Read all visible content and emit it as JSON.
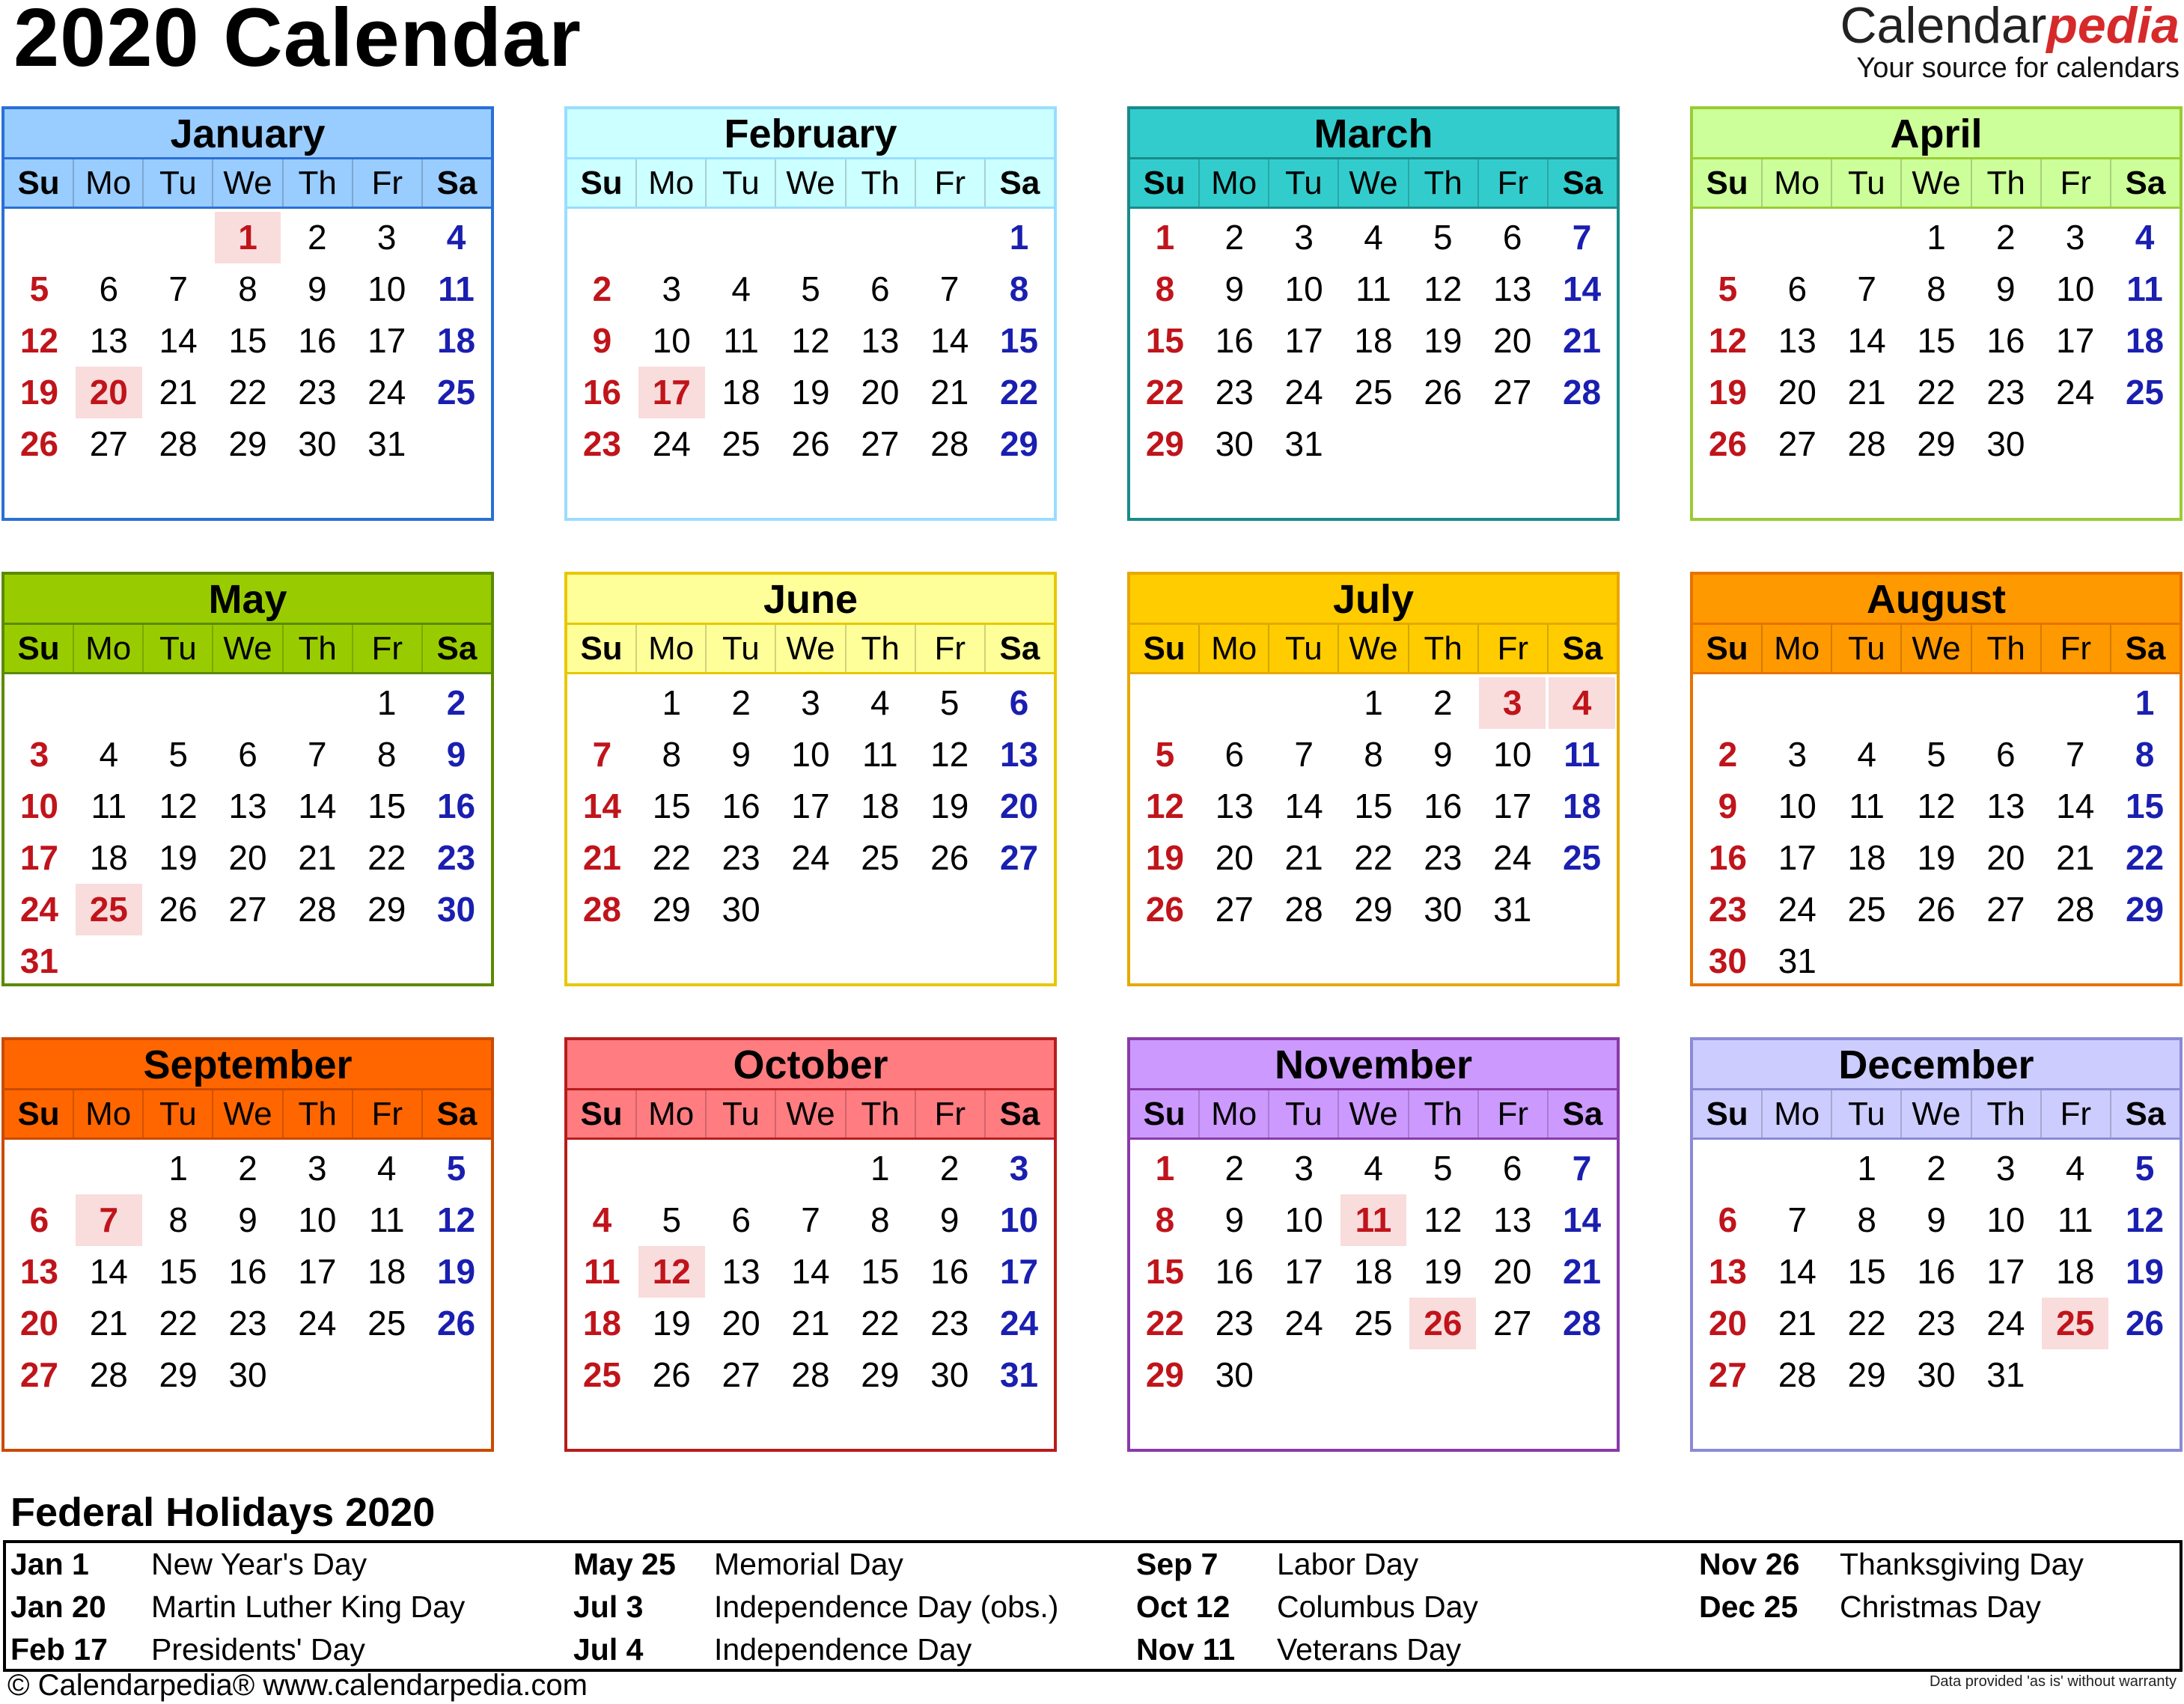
{
  "title": "2020 Calendar",
  "brand": {
    "name_part1": "Calendar",
    "name_part2": "pedia",
    "tagline": "Your source for calendars"
  },
  "weekdays": [
    "Su",
    "Mo",
    "Tu",
    "We",
    "Th",
    "Fr",
    "Sa"
  ],
  "months": [
    {
      "name": "January",
      "offset": 3,
      "days": 31,
      "holidays": [
        1,
        20
      ],
      "border": "#2a6fd6",
      "head": "#99ccff",
      "dow": "#99ccff"
    },
    {
      "name": "February",
      "offset": 6,
      "days": 29,
      "holidays": [
        17
      ],
      "border": "#99ddff",
      "head": "#ccffff",
      "dow": "#ccffff"
    },
    {
      "name": "March",
      "offset": 0,
      "days": 31,
      "holidays": [],
      "border": "#1a8a8a",
      "head": "#33cccc",
      "dow": "#33cccc"
    },
    {
      "name": "April",
      "offset": 3,
      "days": 30,
      "holidays": [],
      "border": "#99cc33",
      "head": "#ccff99",
      "dow": "#ccff99"
    },
    {
      "name": "May",
      "offset": 5,
      "days": 31,
      "holidays": [
        25
      ],
      "border": "#5a8a00",
      "head": "#99cc00",
      "dow": "#99cc00"
    },
    {
      "name": "June",
      "offset": 1,
      "days": 30,
      "holidays": [],
      "border": "#e6c800",
      "head": "#ffff99",
      "dow": "#ffff99"
    },
    {
      "name": "July",
      "offset": 3,
      "days": 31,
      "holidays": [
        3,
        4
      ],
      "border": "#e6a800",
      "head": "#ffcc00",
      "dow": "#ffcc00"
    },
    {
      "name": "August",
      "offset": 6,
      "days": 31,
      "holidays": [],
      "border": "#e67300",
      "head": "#ff9900",
      "dow": "#ff9900"
    },
    {
      "name": "September",
      "offset": 2,
      "days": 30,
      "holidays": [
        7
      ],
      "border": "#cc4a00",
      "head": "#ff6600",
      "dow": "#ff6600"
    },
    {
      "name": "October",
      "offset": 4,
      "days": 31,
      "holidays": [
        12
      ],
      "border": "#b81c1c",
      "head": "#ff7c80",
      "dow": "#ff7c80"
    },
    {
      "name": "November",
      "offset": 0,
      "days": 30,
      "holidays": [
        11,
        26
      ],
      "border": "#8a3aa8",
      "head": "#cc99ff",
      "dow": "#cc99ff"
    },
    {
      "name": "December",
      "offset": 2,
      "days": 31,
      "holidays": [
        25
      ],
      "border": "#8a8ad6",
      "head": "#ccccff",
      "dow": "#ccccff"
    }
  ],
  "federal_holidays": {
    "title": "Federal Holidays 2020",
    "items": [
      {
        "date": "Jan 1",
        "name": "New Year's Day"
      },
      {
        "date": "Jan 20",
        "name": "Martin Luther King Day"
      },
      {
        "date": "Feb 17",
        "name": "Presidents' Day"
      },
      {
        "date": "May 25",
        "name": "Memorial Day"
      },
      {
        "date": "Jul 3",
        "name": "Independence Day (obs.)"
      },
      {
        "date": "Jul 4",
        "name": "Independence Day"
      },
      {
        "date": "Sep 7",
        "name": "Labor Day"
      },
      {
        "date": "Oct 12",
        "name": "Columbus Day"
      },
      {
        "date": "Nov 11",
        "name": "Veterans Day"
      },
      {
        "date": "Nov 26",
        "name": "Thanksgiving Day"
      },
      {
        "date": "Dec 25",
        "name": "Christmas Day"
      }
    ]
  },
  "footer": {
    "left": "© Calendarpedia®   www.calendarpedia.com",
    "right": "Data provided 'as is' without warranty"
  }
}
